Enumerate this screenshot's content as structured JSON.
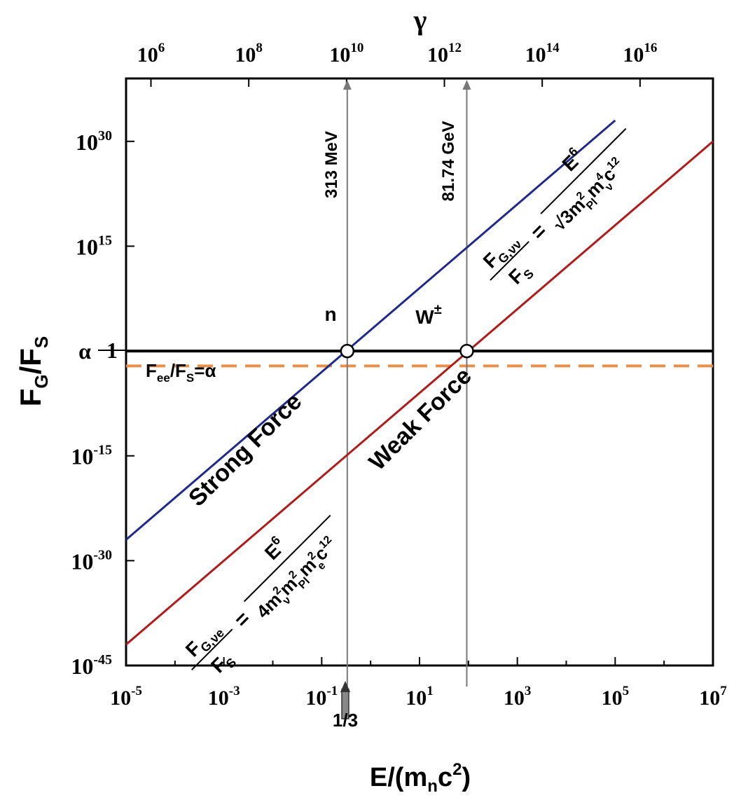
{
  "chart_data": {
    "type": "line",
    "x_scale": "log",
    "y_scale": "log",
    "xlabel_main": "E/(m",
    "xlabel_sub": "n",
    "xlabel_mid": "c",
    "xlabel_sup": "2",
    "xlabel_end": ")",
    "ylabel_main": "F",
    "ylabel_sub1": "G",
    "ylabel_mid": "/F",
    "ylabel_sub2": "S",
    "top_axis_label": "γ",
    "xlim": [
      1e-05,
      10000000.0
    ],
    "ylim": [
      1e-45,
      1e+39
    ],
    "x_ticks": [
      {
        "value": 1e-05,
        "base": "10",
        "exp": "-5"
      },
      {
        "value": 0.001,
        "base": "10",
        "exp": "-3"
      },
      {
        "value": 0.1,
        "base": "10",
        "exp": "-1"
      },
      {
        "value": 10.0,
        "base": "10",
        "exp": "1"
      },
      {
        "value": 1000.0,
        "base": "10",
        "exp": "3"
      },
      {
        "value": 100000.0,
        "base": "10",
        "exp": "5"
      },
      {
        "value": 10000000.0,
        "base": "10",
        "exp": "7"
      }
    ],
    "y_ticks": [
      {
        "value": 1e+30,
        "base": "10",
        "exp": "30"
      },
      {
        "value": 1000000000000000.0,
        "base": "10",
        "exp": "15"
      },
      {
        "value": 1,
        "base": "1",
        "exp": ""
      },
      {
        "value": 1e-15,
        "base": "10",
        "exp": "-15"
      },
      {
        "value": 1e-30,
        "base": "10",
        "exp": "-30"
      },
      {
        "value": 1e-45,
        "base": "10",
        "exp": "-45"
      }
    ],
    "top_ticks": [
      {
        "value": 1000000.0,
        "base": "10",
        "exp": "6"
      },
      {
        "value": 100000000.0,
        "base": "10",
        "exp": "8"
      },
      {
        "value": 10000000000.0,
        "base": "10",
        "exp": "10"
      },
      {
        "value": 1000000000000.0,
        "base": "10",
        "exp": "12"
      },
      {
        "value": 100000000000000.0,
        "base": "10",
        "exp": "14"
      },
      {
        "value": 1e+16,
        "base": "10",
        "exp": "16"
      }
    ],
    "series": [
      {
        "color": "#1f2a8a",
        "x": [
          1e-05,
          100000.0
        ],
        "y": [
          1e-27,
          1e+33
        ]
      },
      {
        "color": "#b01c1c",
        "x": [
          1e-05,
          10000000.0
        ],
        "y": [
          1e-42,
          1e+30
        ]
      }
    ],
    "alpha_line": {
      "label_symbol": "α",
      "y": 0.0073,
      "color": "#e8904a"
    },
    "unity_line": {
      "y": 1
    },
    "alpha_eq": {
      "F": "F",
      "sub1": "ee",
      "mid": "/F",
      "sub2": "S",
      "rest": "=α"
    },
    "vertical_lines": [
      {
        "x": 0.333,
        "label": "313 MeV"
      },
      {
        "x": 92.5,
        "label": "81.74 GeV"
      }
    ],
    "crossing_points": [
      {
        "x": 0.333,
        "y": 1,
        "label": "n",
        "sup": ""
      },
      {
        "x": 92.5,
        "y": 1,
        "label": "W",
        "sup": "±"
      }
    ],
    "bottom_marker": {
      "x": 0.333,
      "label": "1/3"
    },
    "region_labels": {
      "strong": "Strong Force",
      "weak": "Weak Force"
    },
    "formula_vv": {
      "F": "F",
      "F_sub": "G,νν",
      "FS": "F",
      "FS_sub": "S",
      "eq": "=",
      "numer": "E",
      "numer_sup": "6",
      "denom": "√3m",
      "d_sup1": "2",
      "d_sub1": "Pl",
      "d_m2": "m",
      "d_sup2": "4",
      "d_sub2": "ν",
      "d_c": "c",
      "d_sup3": "12"
    },
    "formula_ve": {
      "F": "F",
      "F_sub": "G,νe",
      "FS": "F",
      "FS_sub": "S",
      "eq": "=",
      "numer": "E",
      "numer_sup": "6",
      "denom": "4m",
      "d_sup1": "2",
      "d_sub1": "ν",
      "d_m2": "m",
      "d_sup2": "2",
      "d_sub2": "Pl",
      "d_m3": "m",
      "d_sup3": "2",
      "d_sub3": "e",
      "d_c": "c",
      "d_sup4": "12"
    }
  }
}
